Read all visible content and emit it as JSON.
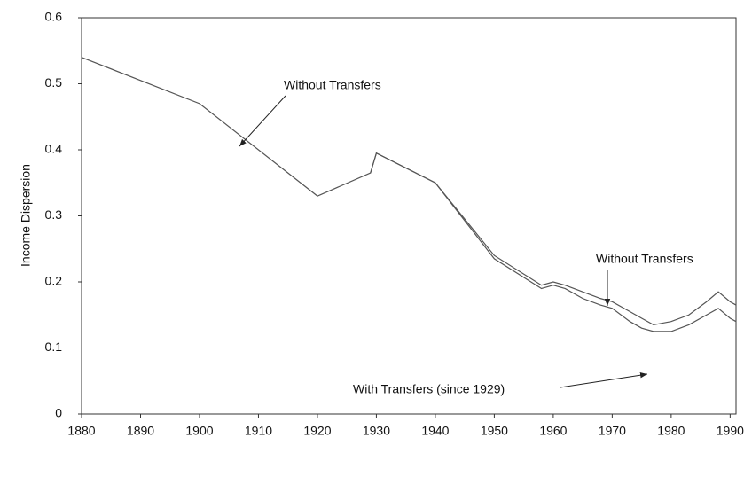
{
  "chart_data": {
    "type": "line",
    "y_label": "Income Dispersion",
    "x": [
      1880,
      1900,
      1920,
      1929,
      1930,
      1940,
      1950,
      1958,
      1960,
      1962,
      1965,
      1968,
      1970,
      1973,
      1975,
      1977,
      1980,
      1983,
      1986,
      1988,
      1990,
      1991
    ],
    "series": [
      {
        "name": "Without Transfers",
        "color": "#555555",
        "values": [
          0.54,
          0.47,
          0.33,
          0.365,
          0.395,
          0.35,
          0.24,
          0.195,
          0.2,
          0.195,
          0.185,
          0.175,
          0.17,
          0.155,
          0.145,
          0.135,
          0.14,
          0.15,
          0.17,
          0.185,
          0.17,
          0.165
        ]
      },
      {
        "name": "With Transfers (since 1929)",
        "color": "#555555",
        "values": [
          null,
          null,
          null,
          0.365,
          0.395,
          0.35,
          0.235,
          0.19,
          0.195,
          0.19,
          0.175,
          0.165,
          0.16,
          0.14,
          0.13,
          0.125,
          0.125,
          0.135,
          0.15,
          0.16,
          0.145,
          0.14
        ]
      }
    ],
    "xlim": [
      1880,
      1991
    ],
    "xticks": [
      1880,
      1890,
      1900,
      1910,
      1920,
      1930,
      1940,
      1950,
      1960,
      1970,
      1980,
      1990
    ],
    "ylim": [
      0,
      0.6
    ],
    "yticks": [
      0,
      0.1,
      0.2,
      0.3,
      0.4,
      0.5,
      0.6
    ],
    "grid": false
  }
}
